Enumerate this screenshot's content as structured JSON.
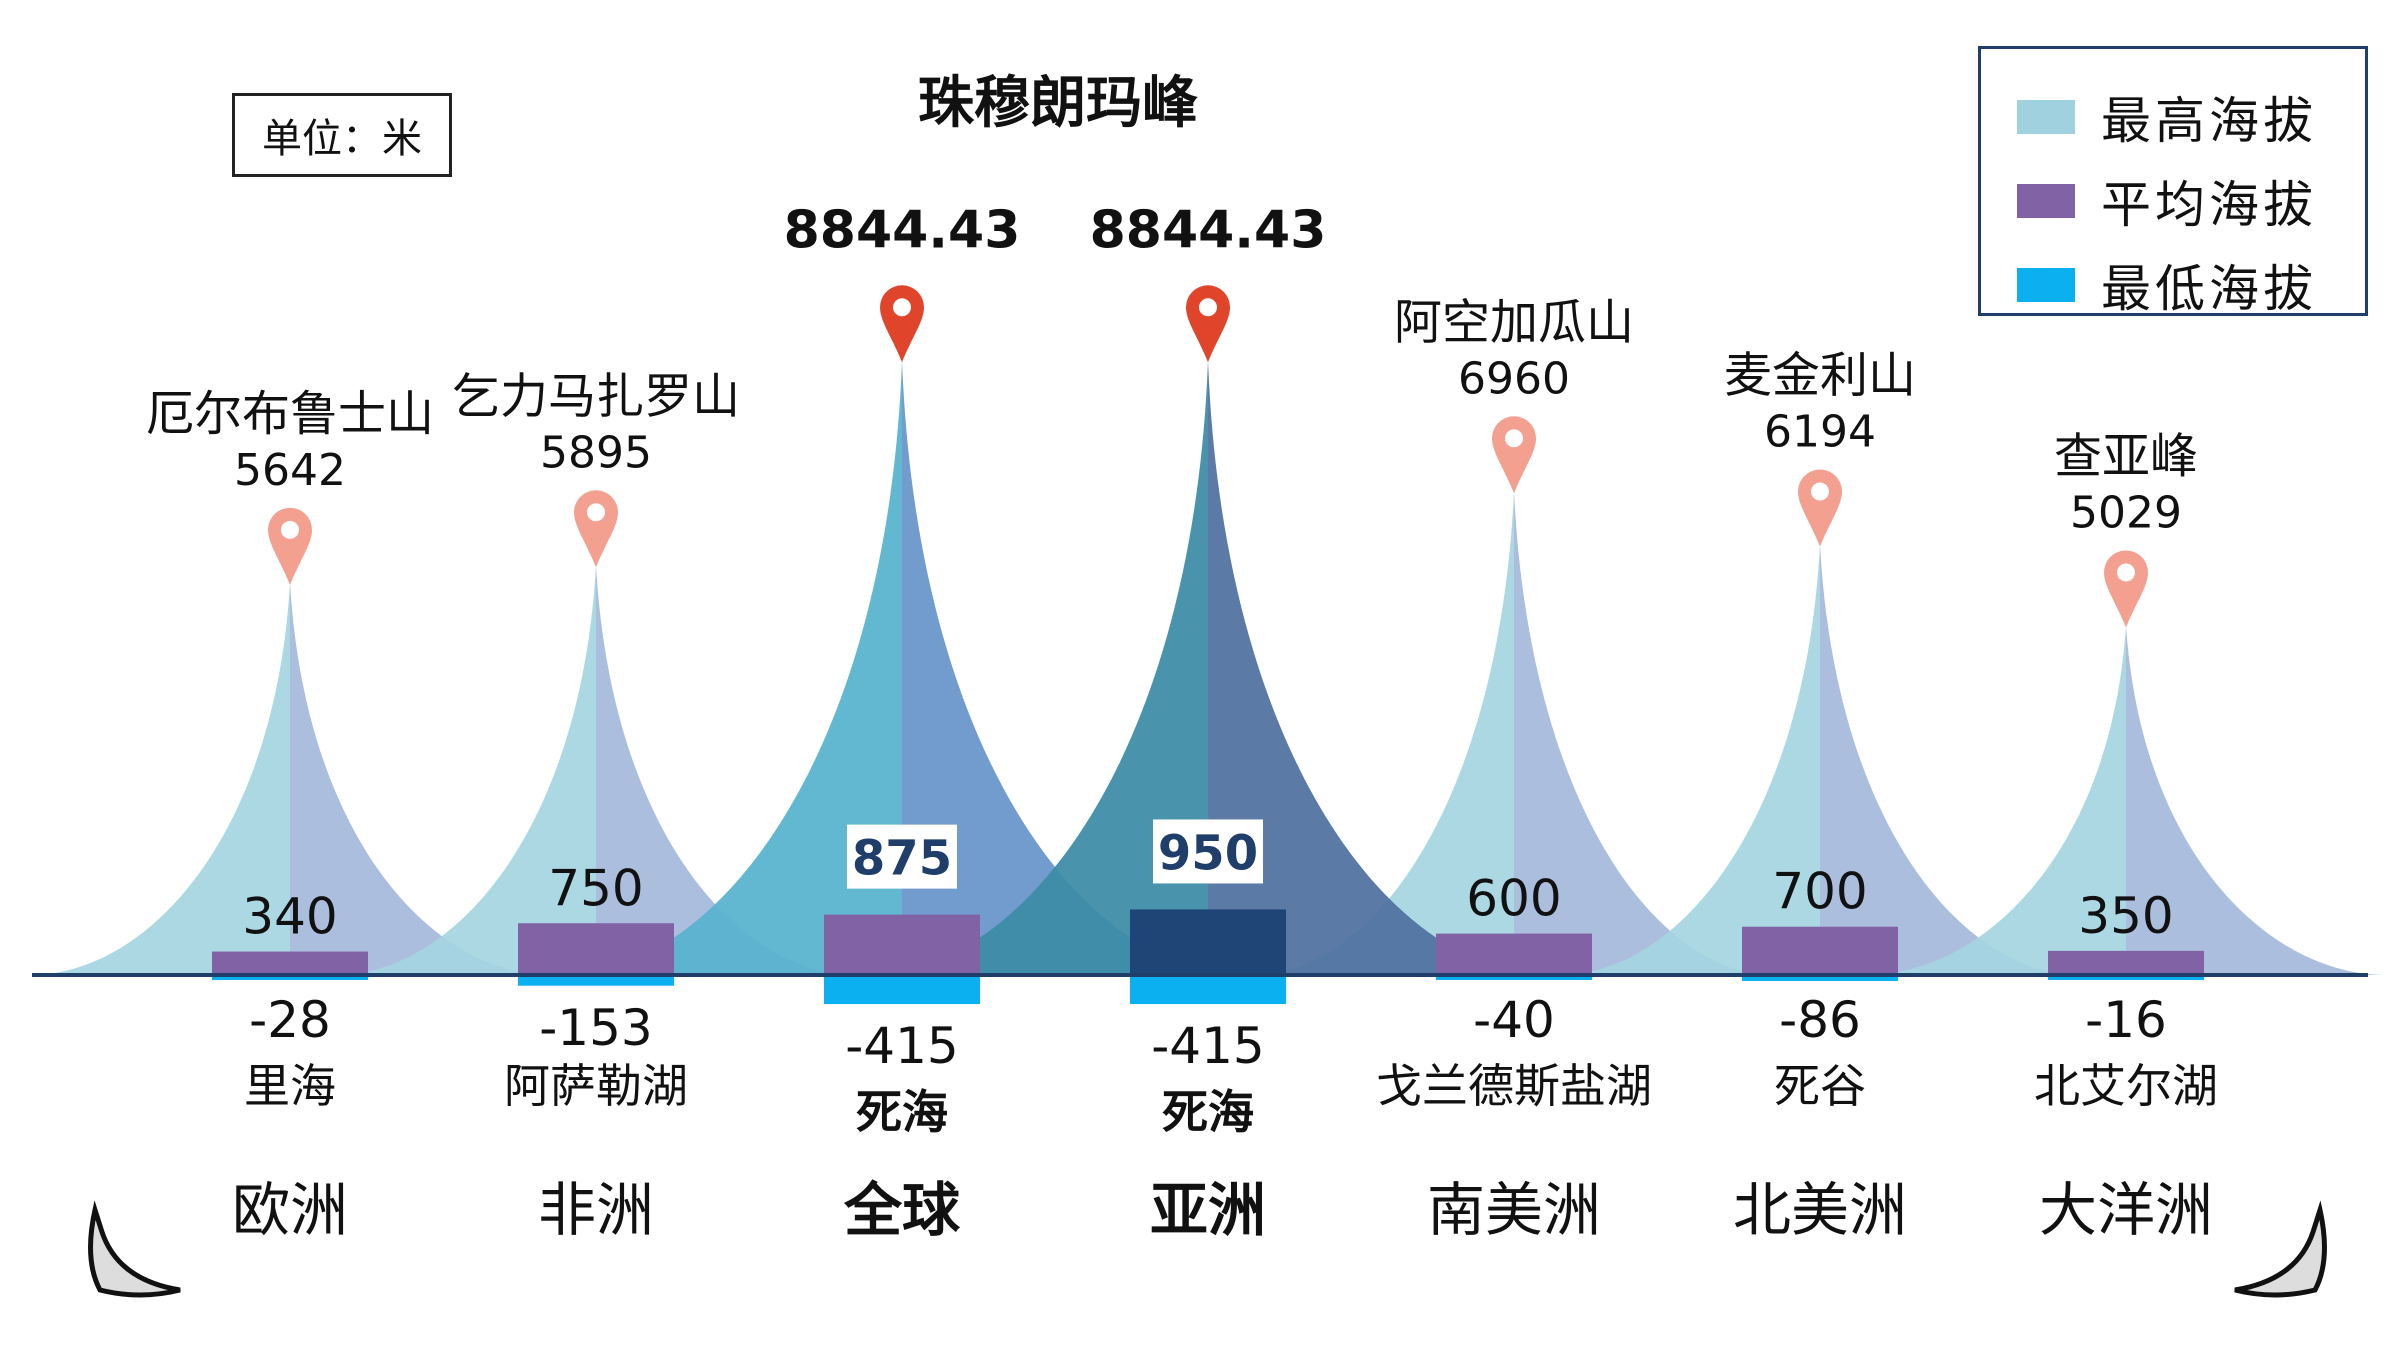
{
  "unit_label": "单位：米",
  "legend": [
    {
      "label": "最高海拔",
      "color": "#9fd1df"
    },
    {
      "label": "平均海拔",
      "color": "#8062a5"
    },
    {
      "label": "最低海拔",
      "color": "#0bb0f0"
    }
  ],
  "colors": {
    "peak_light_left": "#a5d5e2",
    "peak_light_right": "#a4b8da",
    "global_left": "#5ab3cf",
    "global_right": "#6a96cb",
    "asia_left": "#3b8ca6",
    "asia_right": "#4f709f",
    "avg_bar": "#8062a5",
    "avg_bar_asia": "#1f4577",
    "low_bar": "#0bb0f0",
    "pin_light": "#f3a091",
    "pin_red": "#e0452c",
    "baseline": "#1f3e6a"
  },
  "chart_data": {
    "type": "bar",
    "series_names": [
      "最高海拔",
      "平均海拔",
      "最低海拔"
    ],
    "categories": [
      "欧洲",
      "非洲",
      "全球",
      "亚洲",
      "南美洲",
      "北美洲",
      "大洋洲"
    ],
    "highest": [
      {
        "name": "厄尔布鲁士山",
        "value": 5642,
        "label": "5642"
      },
      {
        "name": "乞力马扎罗山",
        "value": 5895,
        "label": "5895"
      },
      {
        "name": "珠穆朗玛峰",
        "value": 8844.43,
        "label": "8844.43"
      },
      {
        "name": "",
        "value": 8844.43,
        "label": "8844.43"
      },
      {
        "name": "阿空加瓜山",
        "value": 6960,
        "label": "6960"
      },
      {
        "name": "麦金利山",
        "value": 6194,
        "label": "6194"
      },
      {
        "name": "查亚峰",
        "value": 5029,
        "label": "5029"
      }
    ],
    "average": [
      {
        "value": 340,
        "label": "340"
      },
      {
        "value": 750,
        "label": "750"
      },
      {
        "value": 875,
        "label": "875"
      },
      {
        "value": 950,
        "label": "950"
      },
      {
        "value": 600,
        "label": "600"
      },
      {
        "value": 700,
        "label": "700"
      },
      {
        "value": 350,
        "label": "350"
      }
    ],
    "lowest": [
      {
        "name": "里海",
        "value": -28,
        "label": "-28"
      },
      {
        "name": "阿萨勒湖",
        "value": -153,
        "label": "-153"
      },
      {
        "name": "死海",
        "value": -415,
        "label": "-415"
      },
      {
        "name": "死海",
        "value": -415,
        "label": "-415"
      },
      {
        "name": "戈兰德斯盐湖",
        "value": -40,
        "label": "-40"
      },
      {
        "name": "死谷",
        "value": -86,
        "label": "-86"
      },
      {
        "name": "北艾尔湖",
        "value": -16,
        "label": "-16"
      }
    ]
  }
}
